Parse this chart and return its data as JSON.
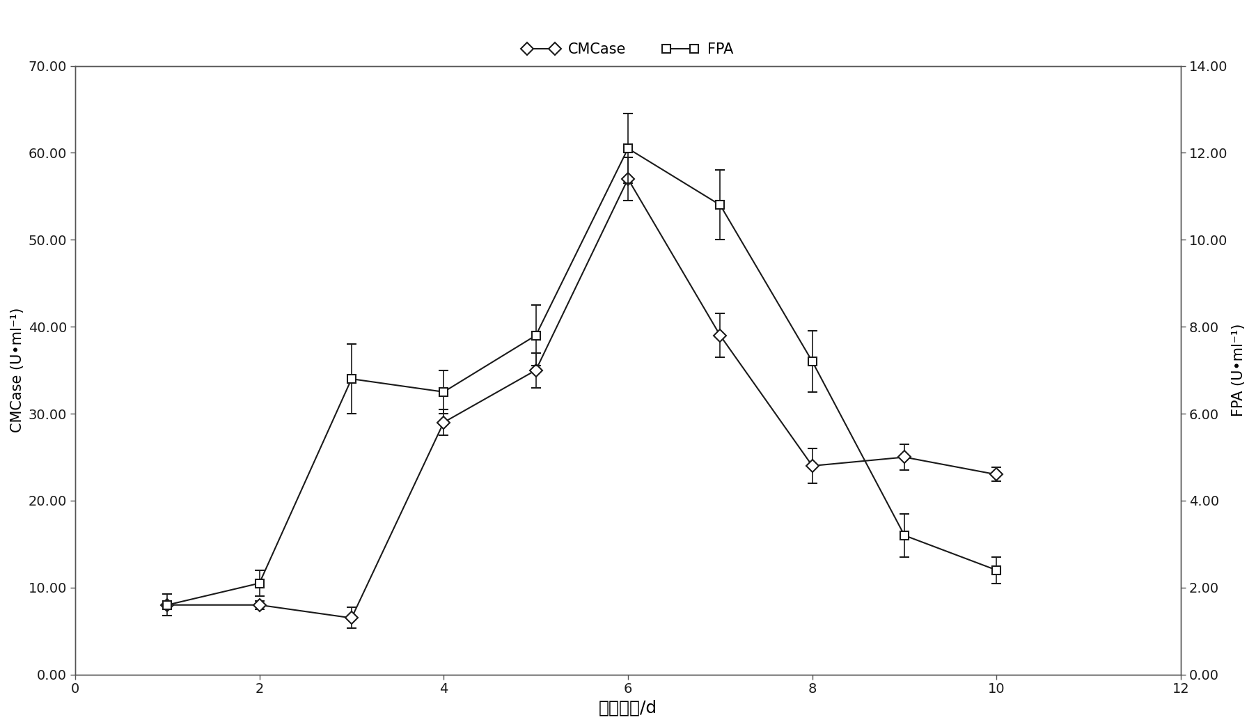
{
  "x": [
    1,
    2,
    3,
    4,
    5,
    6,
    7,
    8,
    9,
    10
  ],
  "cmcase": [
    8.0,
    8.0,
    6.5,
    29.0,
    35.0,
    57.0,
    39.0,
    24.0,
    25.0,
    23.0
  ],
  "fpa": [
    1.6,
    2.1,
    6.8,
    6.5,
    7.8,
    12.1,
    10.8,
    7.2,
    3.2,
    2.4
  ],
  "cmcase_err": [
    0.5,
    0.5,
    1.2,
    1.5,
    2.0,
    2.5,
    2.5,
    2.0,
    1.5,
    0.8
  ],
  "fpa_err": [
    0.25,
    0.3,
    0.8,
    0.5,
    0.7,
    0.8,
    0.8,
    0.7,
    0.5,
    0.3
  ],
  "xlabel": "培养时间/d",
  "ylabel_left": "CMCase (U•ml⁻¹)",
  "ylabel_right": "FPA (U•ml⁻¹)",
  "xlim": [
    0,
    12
  ],
  "ylim_left": [
    0,
    70
  ],
  "ylim_right": [
    0,
    14
  ],
  "xticks": [
    0,
    2,
    4,
    6,
    8,
    10,
    12
  ],
  "yticks_left": [
    0.0,
    10.0,
    20.0,
    30.0,
    40.0,
    50.0,
    60.0,
    70.0
  ],
  "yticks_right": [
    0.0,
    2.0,
    4.0,
    6.0,
    8.0,
    10.0,
    12.0,
    14.0
  ],
  "legend_cmcase": "CMCase",
  "legend_fpa": "FPA",
  "bg_color": "#ffffff",
  "line_color": "#1a1a1a"
}
